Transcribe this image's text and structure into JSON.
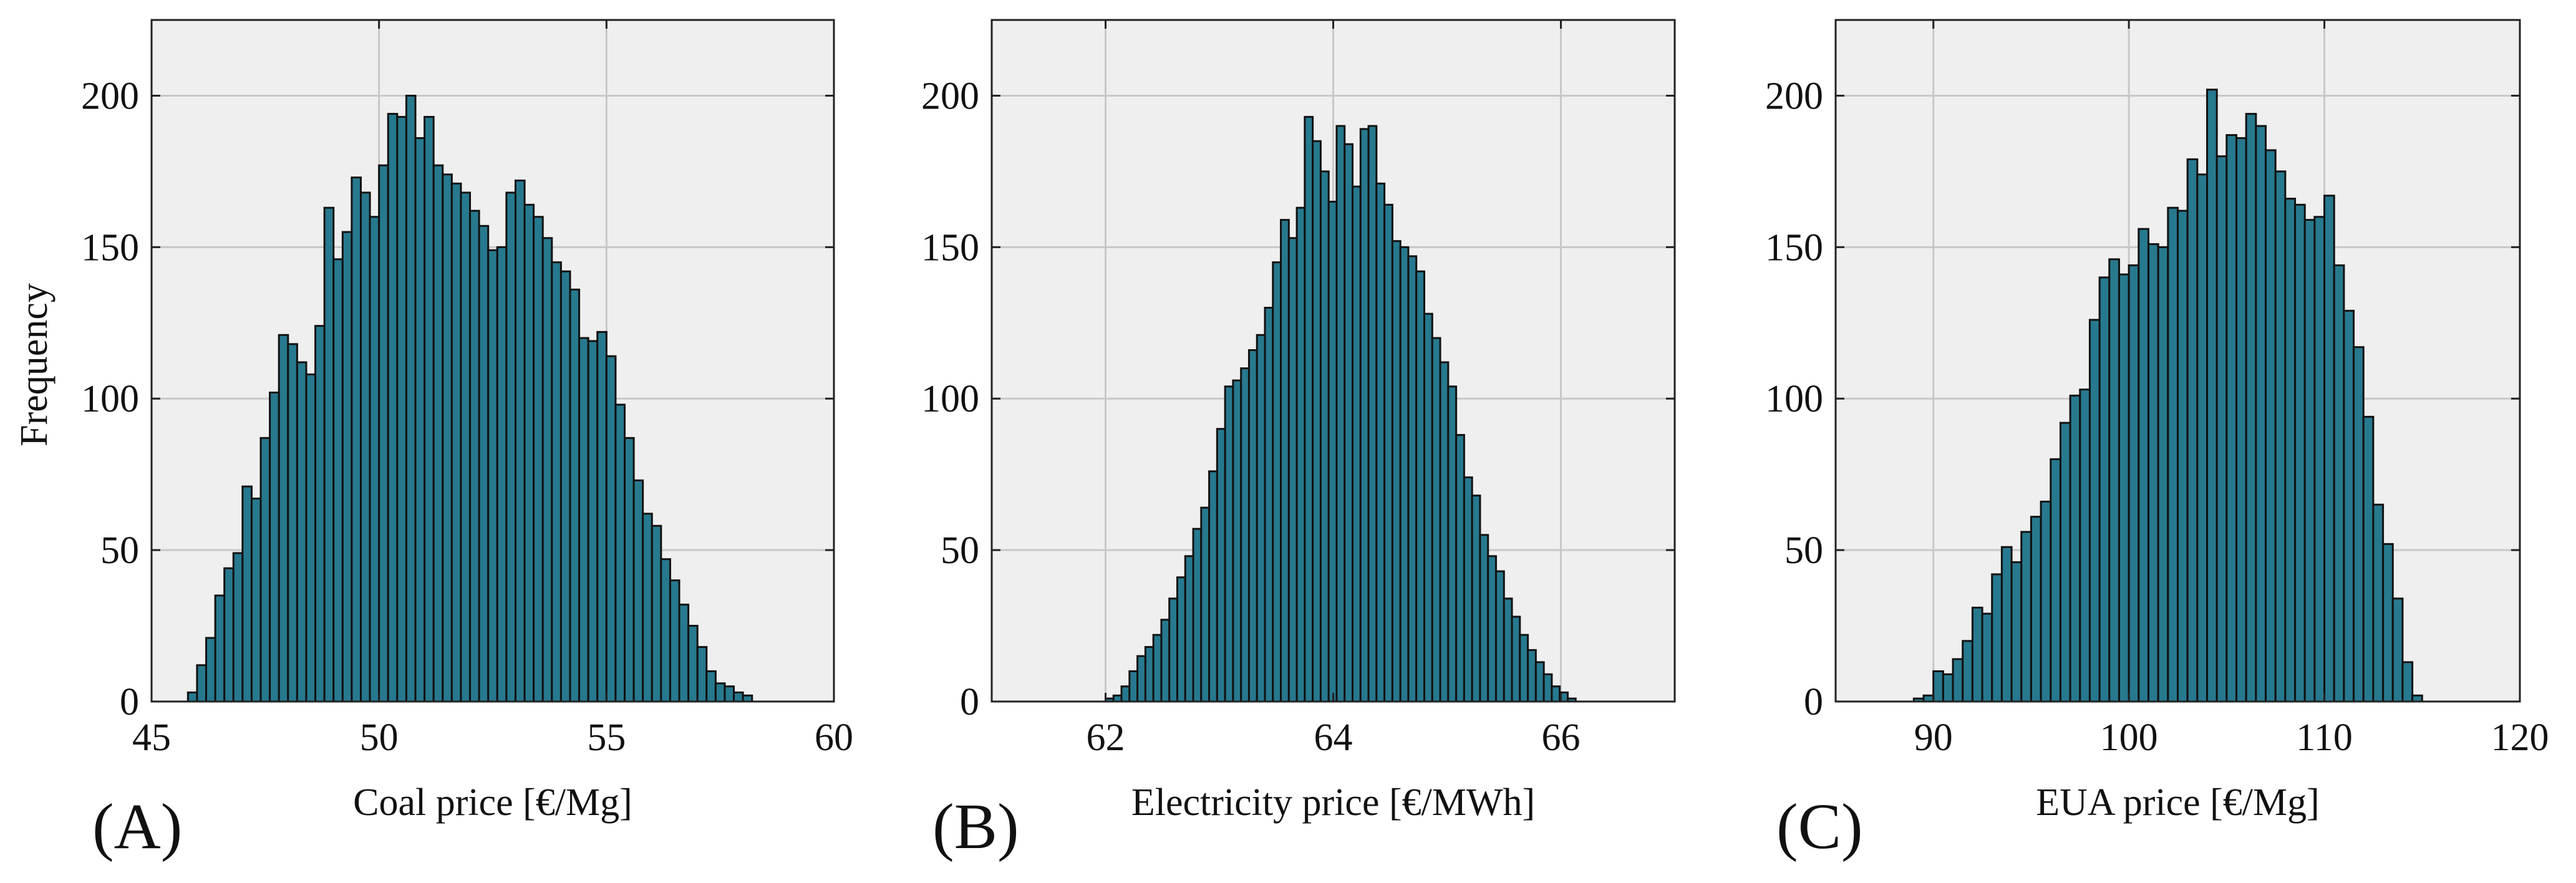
{
  "figure": {
    "shared_ylabel": "Frequency",
    "colors": {
      "bar_fill": "#27798e",
      "bar_stroke": "#111111",
      "plot_bg": "#efefef",
      "grid": "#c8c8c8",
      "axis": "#222222"
    }
  },
  "chart_data": [
    {
      "type": "histogram",
      "panel_label": "(A)",
      "title": "",
      "xlabel": "Coal price [€/Mg]",
      "ylabel": "Frequency",
      "xlim": [
        45,
        60
      ],
      "ylim": [
        0,
        225
      ],
      "xticks": [
        45,
        50,
        55,
        60
      ],
      "yticks": [
        0,
        50,
        100,
        150,
        200
      ],
      "grid": true,
      "bin_start": 45.8,
      "bin_width": 0.2,
      "counts": [
        3,
        12,
        21,
        35,
        44,
        49,
        71,
        67,
        87,
        102,
        121,
        118,
        112,
        108,
        124,
        163,
        146,
        155,
        173,
        168,
        160,
        177,
        194,
        193,
        200,
        186,
        193,
        177,
        174,
        171,
        168,
        162,
        157,
        149,
        150,
        168,
        172,
        164,
        160,
        153,
        145,
        142,
        136,
        120,
        119,
        122,
        114,
        98,
        87,
        73,
        62,
        58,
        47,
        40,
        32,
        25,
        18,
        10,
        6,
        5,
        3,
        2
      ]
    },
    {
      "type": "histogram",
      "panel_label": "(B)",
      "title": "",
      "xlabel": "Electricity price [€/MWh]",
      "ylabel": "",
      "xlim": [
        61,
        67
      ],
      "ylim": [
        0,
        225
      ],
      "xticks": [
        62,
        64,
        66
      ],
      "yticks": [
        0,
        50,
        100,
        150,
        200
      ],
      "grid": true,
      "bin_start": 62.0,
      "bin_width": 0.07,
      "counts": [
        1,
        2,
        5,
        10,
        15,
        18,
        22,
        27,
        34,
        41,
        48,
        57,
        64,
        76,
        90,
        104,
        106,
        110,
        116,
        121,
        130,
        145,
        159,
        153,
        163,
        193,
        185,
        175,
        165,
        190,
        184,
        170,
        189,
        190,
        171,
        164,
        152,
        150,
        147,
        142,
        128,
        120,
        112,
        104,
        88,
        74,
        68,
        55,
        48,
        43,
        34,
        28,
        22,
        17,
        13,
        9,
        5,
        3,
        1
      ]
    },
    {
      "type": "histogram",
      "panel_label": "(C)",
      "title": "",
      "xlabel": "EUA price [€/Mg]",
      "ylabel": "",
      "xlim": [
        85,
        120
      ],
      "ylim": [
        0,
        225
      ],
      "xticks": [
        90,
        100,
        110,
        120
      ],
      "yticks": [
        0,
        50,
        100,
        150,
        200
      ],
      "grid": true,
      "bin_start": 89.0,
      "bin_width": 0.5,
      "counts": [
        1,
        2,
        10,
        9,
        14,
        20,
        31,
        29,
        42,
        51,
        46,
        56,
        61,
        66,
        80,
        92,
        101,
        103,
        126,
        140,
        146,
        141,
        144,
        156,
        151,
        150,
        163,
        162,
        179,
        174,
        202,
        180,
        187,
        186,
        194,
        190,
        182,
        175,
        166,
        164,
        159,
        160,
        167,
        144,
        129,
        117,
        94,
        65,
        52,
        34,
        13,
        2
      ]
    }
  ]
}
